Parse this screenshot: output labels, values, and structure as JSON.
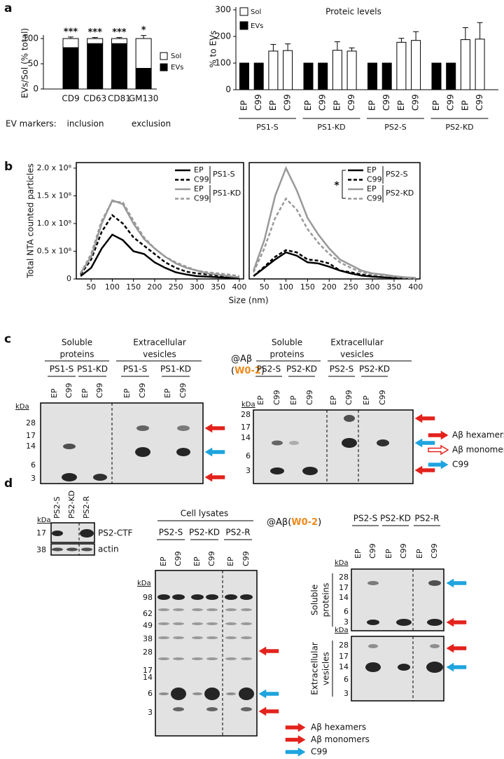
{
  "panel_labels": [
    "a",
    "b",
    "c",
    "d"
  ],
  "chart_data": [
    {
      "type": "stacked_bar",
      "ylabel": "EVs/Sol (% total)",
      "categories": [
        "CD9",
        "CD63",
        "CD81",
        "GM130"
      ],
      "series": [
        {
          "name": "EVs",
          "color": "#000000",
          "values": [
            82,
            90,
            90,
            41
          ]
        },
        {
          "name": "Sol",
          "color": "#ffffff",
          "values": [
            18,
            10,
            10,
            59
          ],
          "errors": [
            3,
            2,
            2,
            6
          ]
        }
      ],
      "annotations": [
        "***",
        "***",
        "***",
        "*"
      ],
      "ylim": [
        0,
        100
      ],
      "yticks": [
        0,
        50,
        100
      ],
      "footnote": [
        "EV markers:",
        "inclusion",
        "exclusion"
      ]
    },
    {
      "type": "bar",
      "title": "Proteic levels",
      "ylabel": "% to EVs",
      "categories": [
        "EP",
        "C99",
        "EP",
        "C99",
        "EP",
        "C99",
        "EP",
        "C99",
        "EP",
        "C99",
        "EP",
        "C99",
        "EP",
        "C99",
        "EP",
        "C99"
      ],
      "groups": [
        "PS1-S",
        "PS1-KD",
        "PS2-S",
        "PS2-KD"
      ],
      "series": [
        {
          "name": "Sol",
          "color": "#ffffff",
          "values": [
            null,
            null,
            145,
            147,
            null,
            null,
            148,
            145,
            null,
            null,
            178,
            185,
            null,
            null,
            188,
            190
          ],
          "errors": [
            null,
            null,
            25,
            25,
            null,
            null,
            32,
            12,
            null,
            null,
            15,
            33,
            null,
            null,
            45,
            62
          ]
        },
        {
          "name": "EVs",
          "color": "#000000",
          "values": [
            100,
            100,
            null,
            null,
            100,
            100,
            null,
            null,
            100,
            100,
            null,
            null,
            100,
            100,
            null,
            null
          ]
        }
      ],
      "ylim": [
        0,
        300
      ],
      "yticks": [
        0,
        100,
        200,
        300
      ]
    },
    {
      "type": "line",
      "ylabel": "Total NTA counted particles",
      "xlabel": "Size (nm)",
      "x": [
        25,
        50,
        75,
        100,
        125,
        150,
        175,
        200,
        225,
        250,
        275,
        300,
        325,
        350,
        375,
        400
      ],
      "legend_groups": [
        "PS1-S",
        "PS1-KD"
      ],
      "series": [
        {
          "name": "EP",
          "color": "#000000",
          "dashed": false,
          "values": [
            5000000.0,
            20000000.0,
            55000000.0,
            80000000.0,
            70000000.0,
            50000000.0,
            45000000.0,
            30000000.0,
            20000000.0,
            12000000.0,
            8000000.0,
            5000000.0,
            4000000.0,
            3000000.0,
            2000000.0,
            1000000.0
          ]
        },
        {
          "name": "C99",
          "color": "#000000",
          "dashed": true,
          "values": [
            8000000.0,
            35000000.0,
            85000000.0,
            115000000.0,
            100000000.0,
            75000000.0,
            60000000.0,
            45000000.0,
            30000000.0,
            20000000.0,
            13000000.0,
            10000000.0,
            8000000.0,
            6000000.0,
            3000000.0,
            2000000.0
          ]
        },
        {
          "name": "EP",
          "color": "#999999",
          "dashed": false,
          "values": [
            10000000.0,
            40000000.0,
            100000000.0,
            142000000.0,
            135000000.0,
            100000000.0,
            72000000.0,
            55000000.0,
            40000000.0,
            28000000.0,
            20000000.0,
            15000000.0,
            10000000.0,
            8000000.0,
            5000000.0,
            3000000.0
          ]
        },
        {
          "name": "C99",
          "color": "#999999",
          "dashed": true,
          "values": [
            10000000.0,
            45000000.0,
            105000000.0,
            140000000.0,
            138000000.0,
            105000000.0,
            75000000.0,
            55000000.0,
            40000000.0,
            30000000.0,
            22000000.0,
            15000000.0,
            12000000.0,
            10000000.0,
            8000000.0,
            5000000.0
          ]
        }
      ],
      "xlim": [
        15,
        410
      ],
      "xticks": [
        50,
        100,
        150,
        200,
        250,
        300,
        350,
        400
      ],
      "ylim": [
        0,
        210000000
      ],
      "yticks": [
        0,
        {
          "value": 50000000,
          "label": "0.5 x 10⁸"
        },
        {
          "value": 100000000,
          "label": "1.0 x 10⁸"
        },
        {
          "value": 150000000,
          "label": "1.5 x 10⁸"
        },
        {
          "value": 200000000,
          "label": "2.0 x 10⁸"
        }
      ]
    },
    {
      "type": "line",
      "x": [
        25,
        50,
        75,
        100,
        125,
        150,
        175,
        200,
        225,
        250,
        275,
        300,
        325,
        350,
        375,
        400
      ],
      "legend_groups": [
        "PS2-S",
        "PS2-KD"
      ],
      "annotation": "*",
      "series": [
        {
          "name": "EP",
          "color": "#000000",
          "dashed": false,
          "values": [
            5000000.0,
            20000000.0,
            35000000.0,
            48000000.0,
            42000000.0,
            30000000.0,
            28000000.0,
            22000000.0,
            15000000.0,
            10000000.0,
            6000000.0,
            4000000.0,
            3000000.0,
            2000000.0,
            1000000.0,
            1000000.0
          ]
        },
        {
          "name": "C99",
          "color": "#000000",
          "dashed": true,
          "values": [
            5000000.0,
            22000000.0,
            40000000.0,
            52000000.0,
            48000000.0,
            35000000.0,
            33000000.0,
            28000000.0,
            15000000.0,
            12000000.0,
            8000000.0,
            5000000.0,
            3000000.0,
            2000000.0,
            2000000.0,
            1000000.0
          ]
        },
        {
          "name": "EP",
          "color": "#999999",
          "dashed": false,
          "values": [
            15000000.0,
            70000000.0,
            150000000.0,
            200000000.0,
            160000000.0,
            110000000.0,
            80000000.0,
            55000000.0,
            35000000.0,
            25000000.0,
            15000000.0,
            10000000.0,
            8000000.0,
            5000000.0,
            3000000.0,
            2000000.0
          ]
        },
        {
          "name": "C99",
          "color": "#999999",
          "dashed": true,
          "values": [
            12000000.0,
            55000000.0,
            110000000.0,
            145000000.0,
            125000000.0,
            90000000.0,
            65000000.0,
            45000000.0,
            30000000.0,
            20000000.0,
            12000000.0,
            8000000.0,
            6000000.0,
            4000000.0,
            2000000.0,
            1000000.0
          ]
        }
      ],
      "xlim": [
        15,
        410
      ],
      "xticks": [
        50,
        100,
        150,
        200,
        250,
        300,
        350,
        400
      ],
      "ylim": [
        0,
        210000000
      ]
    }
  ],
  "panel_c": {
    "left_blot": {
      "headers": [
        [
          "Soluble",
          "proteins"
        ],
        [
          "Extracellular",
          "vesicles"
        ]
      ],
      "groups": [
        "PS1-S",
        "PS1-KD",
        "PS1-S",
        "PS1-KD"
      ],
      "lanes": [
        "EP",
        "C99",
        "EP",
        "C99",
        "EP",
        "C99",
        "EP",
        "C99"
      ],
      "kda_label": "kDa",
      "markers": [
        28,
        17,
        14,
        6,
        3
      ]
    },
    "antibody": [
      "@Aβ",
      "(",
      "W0-2",
      ")"
    ],
    "right_blot": {
      "headers": [
        [
          "Soluble",
          "proteins"
        ],
        [
          "Extracellular",
          "vesicles"
        ]
      ],
      "groups": [
        "PS2-S",
        "PS2-KD",
        "PS2-S",
        "PS2-KD"
      ],
      "lanes": [
        "EP",
        "C99",
        "EP",
        "C99",
        "EP",
        "C99",
        "EP",
        "C99"
      ],
      "kda_label": "kDa",
      "markers": [
        28,
        17,
        14,
        6,
        3
      ]
    },
    "legend": [
      "Aβ hexamers",
      "Aβ monomers",
      "C99"
    ]
  },
  "panel_d": {
    "ctf_blot": {
      "lanes": [
        "PS2-S",
        "PS2-KD",
        "PS2-R"
      ],
      "kda_label": "kDa",
      "markers": [
        17,
        38
      ],
      "bands": [
        "PS2-CTF",
        "actin"
      ]
    },
    "lysate_blot": {
      "title": "Cell lysates",
      "groups": [
        "PS2-S",
        "PS2-KD",
        "PS2-R"
      ],
      "lanes": [
        "EP",
        "C99",
        "EP",
        "C99",
        "EP",
        "C99"
      ],
      "kda_label": "kDa",
      "markers": [
        98,
        62,
        49,
        38,
        28,
        17,
        14,
        6,
        3
      ]
    },
    "antibody": [
      "@Aβ",
      "(",
      "W0-2",
      ")"
    ],
    "ab_blots": {
      "groups": [
        "PS2-S",
        "PS2-KD",
        "PS2-R"
      ],
      "lanes": [
        "EP",
        "C99",
        "EP",
        "C99",
        "EP",
        "C99"
      ],
      "blots": [
        {
          "label": [
            "Soluble",
            "proteins"
          ],
          "kda_label": "kDa",
          "markers": [
            28,
            17,
            14,
            6,
            3
          ]
        },
        {
          "label": [
            "Extracellular",
            "vesicles"
          ],
          "kda_label": "kDa",
          "markers": [
            28,
            17,
            14,
            6,
            3
          ]
        }
      ]
    },
    "legend": [
      "Aβ hexamers",
      "Aβ monomers",
      "C99"
    ]
  }
}
